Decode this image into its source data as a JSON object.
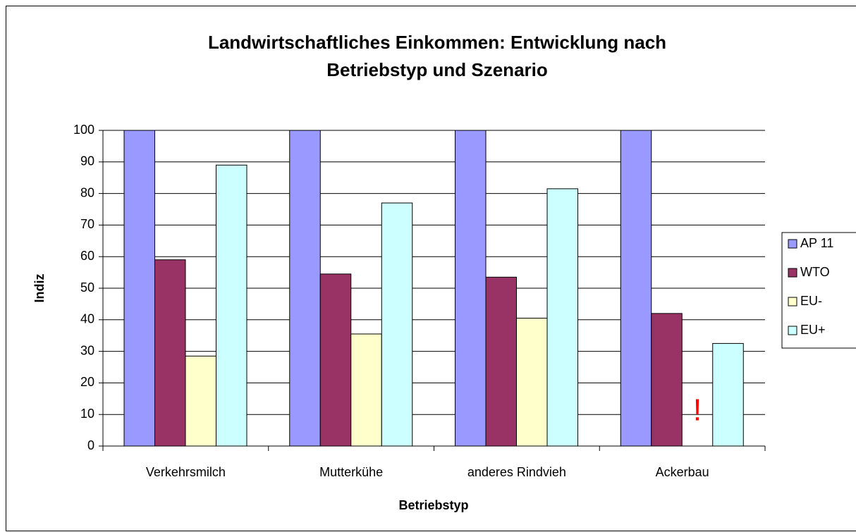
{
  "chart_data": {
    "type": "bar",
    "title": [
      "Landwirtschaftliches Einkommen: Entwicklung nach",
      "Betriebstyp und Szenario"
    ],
    "x_label": "Betriebstyp",
    "y_label": "Indiz",
    "categories": [
      "Verkehrsmilch",
      "Mutterkühe",
      "anderes Rindvieh",
      "Ackerbau"
    ],
    "series": [
      {
        "name": "AP 11",
        "color": "#9999ff",
        "values": [
          100,
          100,
          100,
          100
        ]
      },
      {
        "name": "WTO",
        "color": "#993366",
        "values": [
          59,
          54.5,
          53.5,
          42
        ]
      },
      {
        "name": "EU-",
        "color": "#ffffcc",
        "values": [
          28.5,
          35.5,
          40.5,
          null
        ]
      },
      {
        "name": "EU+",
        "color": "#ccffff",
        "values": [
          89,
          77,
          81.5,
          32.5
        ]
      }
    ],
    "annotation": "!",
    "ylim": [
      0,
      100
    ],
    "yticks": [
      0,
      10,
      20,
      30,
      40,
      50,
      60,
      70,
      80,
      90,
      100
    ],
    "grid": true,
    "legend": "right"
  }
}
